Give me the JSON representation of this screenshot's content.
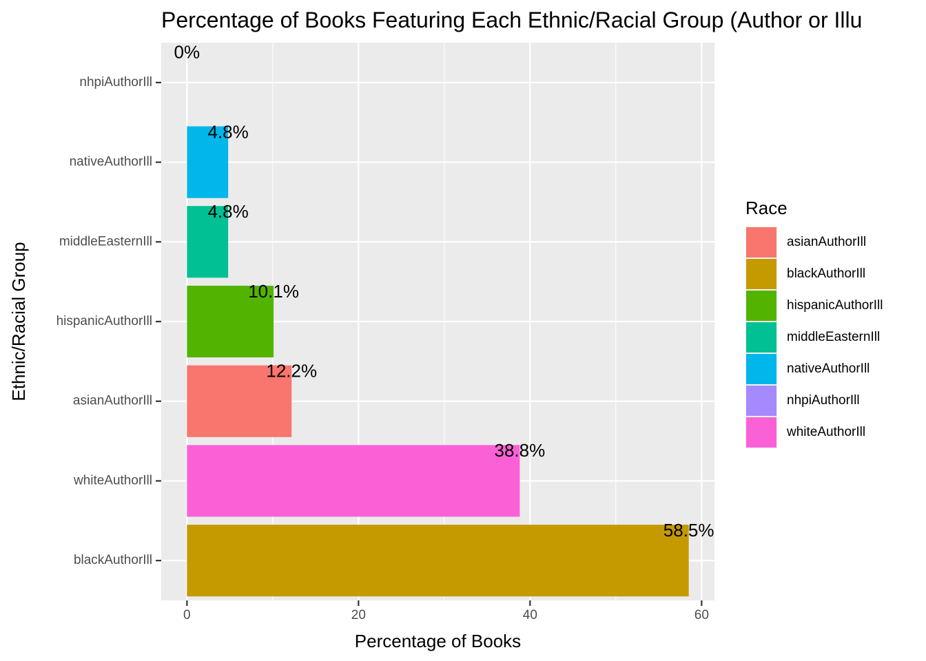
{
  "chart_data": {
    "type": "bar",
    "orientation": "horizontal",
    "title": "Percentage of Books Featuring Each Ethnic/Racial Group (Author or Illu",
    "xlabel": "Percentage of Books",
    "ylabel": "Ethnic/Racial Group",
    "xlim": [
      -3,
      61.5
    ],
    "xticks": [
      0,
      20,
      40,
      60
    ],
    "xtick_labels": [
      "0",
      "20",
      "40",
      "60"
    ],
    "grid": true,
    "categories": [
      "nhpiAuthorIll",
      "nativeAuthorIll",
      "middleEasternIll",
      "hispanicAuthorIll",
      "asianAuthorIll",
      "whiteAuthorIll",
      "blackAuthorIll"
    ],
    "values": [
      0,
      4.8,
      4.8,
      10.1,
      12.2,
      38.8,
      58.5
    ],
    "data_labels": [
      "0%",
      "4.8%",
      "4.8%",
      "10.1%",
      "12.2%",
      "38.8%",
      "58.5%"
    ],
    "colors": {
      "asianAuthorIll": "#F8766D",
      "blackAuthorIll": "#C49A00",
      "hispanicAuthorIll": "#53B400",
      "middleEasternIll": "#00C094",
      "nativeAuthorIll": "#00B6EB",
      "nhpiAuthorIll": "#A58AFF",
      "whiteAuthorIll": "#FB61D7"
    },
    "legend": {
      "title": "Race",
      "position": "right",
      "entries": [
        "asianAuthorIll",
        "blackAuthorIll",
        "hispanicAuthorIll",
        "middleEasternIll",
        "nativeAuthorIll",
        "nhpiAuthorIll",
        "whiteAuthorIll"
      ]
    },
    "panel_background": "#EBEBEB",
    "grid_color": "#FFFFFF"
  }
}
